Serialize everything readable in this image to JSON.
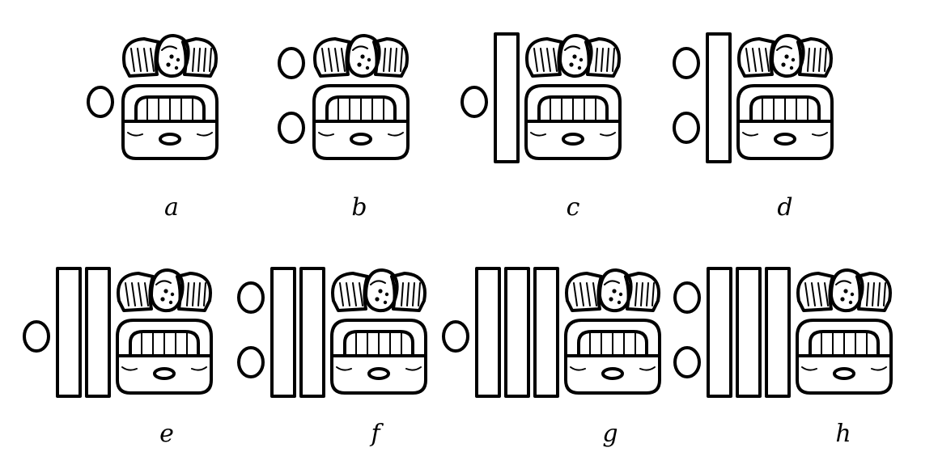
{
  "figures": [
    {
      "label": "a",
      "dots": 1,
      "bars": 0
    },
    {
      "label": "b",
      "dots": 2,
      "bars": 0
    },
    {
      "label": "c",
      "dots": 1,
      "bars": 1
    },
    {
      "label": "d",
      "dots": 2,
      "bars": 1
    },
    {
      "label": "e",
      "dots": 1,
      "bars": 2
    },
    {
      "label": "f",
      "dots": 2,
      "bars": 2
    },
    {
      "label": "g",
      "dots": 1,
      "bars": 3
    },
    {
      "label": "h",
      "dots": 2,
      "bars": 3
    }
  ]
}
